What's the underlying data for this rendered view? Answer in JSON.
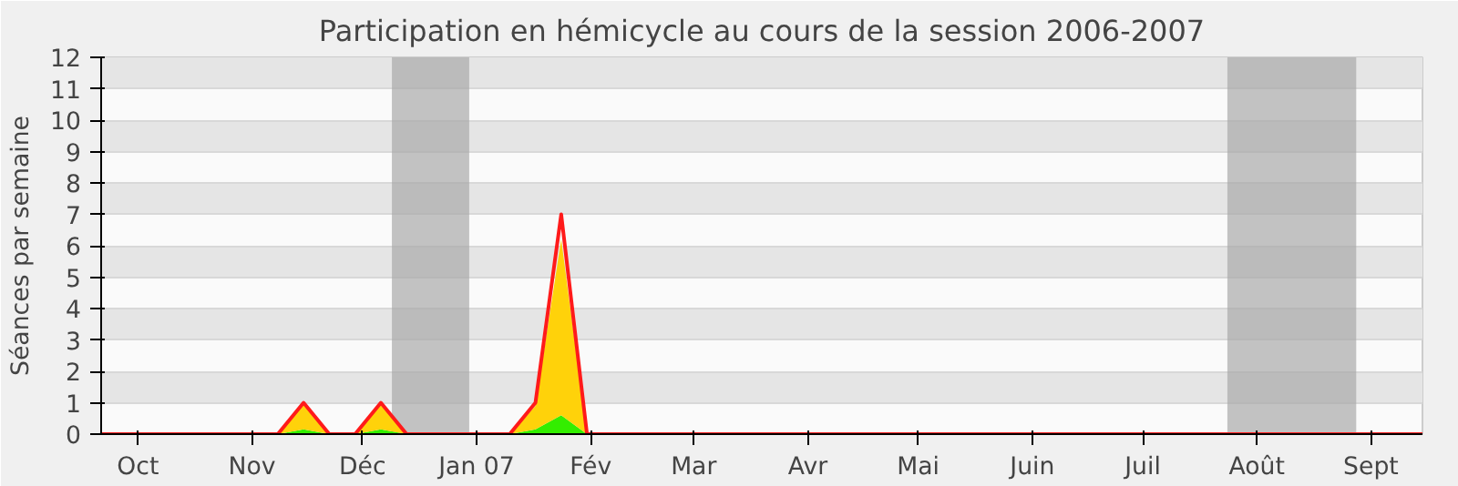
{
  "chart_data": {
    "type": "area",
    "stacked": true,
    "title": "Participation en hémicycle au cours de la session 2006-2007",
    "ylabel": "Séances par semaine",
    "x": [
      "2006-09-21",
      "2006-11-08",
      "2006-11-15",
      "2006-11-22",
      "2006-11-29",
      "2006-12-06",
      "2006-12-13",
      "2007-01-10",
      "2007-01-17",
      "2007-01-24",
      "2007-01-31",
      "2007-09-15"
    ],
    "series": [
      {
        "color": "#33ee00",
        "values": [
          0,
          0,
          0.15,
          0,
          0,
          0.15,
          0,
          0,
          0.15,
          0.6,
          0,
          0
        ]
      },
      {
        "color": "#ffd20a",
        "values": [
          0,
          0,
          0.85,
          0,
          0,
          0.85,
          0,
          0,
          0.75,
          5.6,
          0,
          0
        ]
      },
      {
        "type": "line",
        "color": "#ff1a1a",
        "values": [
          0,
          0,
          1,
          0,
          0,
          1,
          0,
          0,
          1,
          7,
          0,
          0
        ]
      }
    ],
    "xlim": [
      "2006-09-21",
      "2007-09-15"
    ],
    "ylim": [
      0,
      12
    ],
    "xticks": [
      {
        "value": "2006-10-01",
        "label": "Oct"
      },
      {
        "value": "2006-11-01",
        "label": "Nov"
      },
      {
        "value": "2006-12-01",
        "label": "Déc"
      },
      {
        "value": "2007-01-01",
        "label": "Jan 07"
      },
      {
        "value": "2007-02-01",
        "label": "Fév"
      },
      {
        "value": "2007-03-01",
        "label": "Mar"
      },
      {
        "value": "2007-04-01",
        "label": "Avr"
      },
      {
        "value": "2007-05-01",
        "label": "Mai"
      },
      {
        "value": "2007-06-01",
        "label": "Juin"
      },
      {
        "value": "2007-07-01",
        "label": "Juil"
      },
      {
        "value": "2007-08-01",
        "label": "Août"
      },
      {
        "value": "2007-09-01",
        "label": "Sept"
      }
    ],
    "yticks": [
      0,
      1,
      2,
      3,
      4,
      5,
      6,
      7,
      8,
      9,
      10,
      11,
      12
    ],
    "bands": [
      {
        "axis": "x",
        "from": "2006-12-09",
        "to": "2006-12-30",
        "color": "#aaaaaa"
      },
      {
        "axis": "x",
        "from": "2007-07-24",
        "to": "2007-08-28",
        "color": "#aaaaaa"
      }
    ],
    "grid": "y"
  }
}
